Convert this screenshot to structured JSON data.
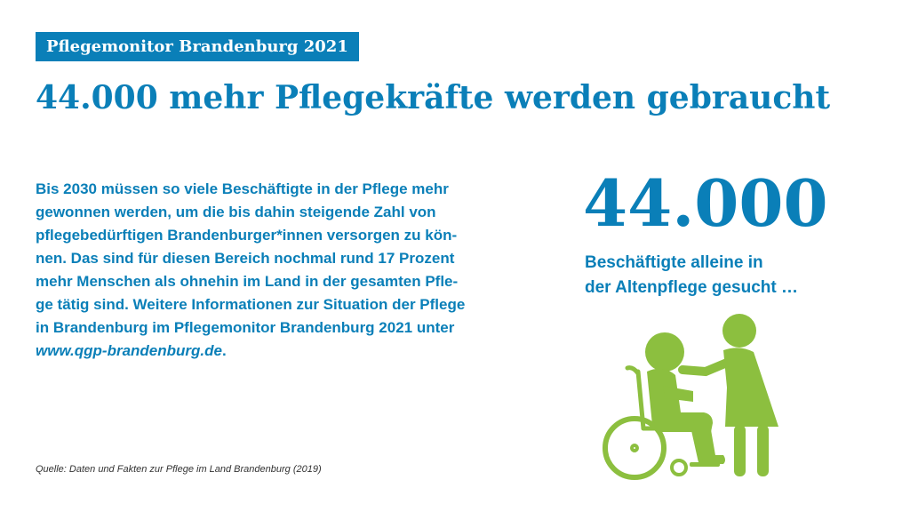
{
  "header": {
    "badge": "Pflegemonitor Brandenburg 2021",
    "title": "44.000 mehr Pflegekräfte werden gebraucht"
  },
  "body": {
    "lines": [
      "Bis 2030 müssen so viele Beschäftigte in der Pflege mehr",
      "gewonnen werden, um die bis dahin steigende Zahl von",
      "pflegebedürftigen Brandenburger*innen versorgen zu kön-",
      "nen. Das sind für diesen Bereich nochmal rund 17 Prozent",
      "mehr Menschen als ohnehin im Land in der gesamten Pfle-",
      "ge tätig sind. Weitere Informationen zur Situation der Pflege",
      "in Brandenburg im Pflegemonitor Brandenburg 2021 unter"
    ],
    "url": "www.qgp-brandenburg.de",
    "url_suffix": "."
  },
  "highlight": {
    "number": "44.000",
    "lines": [
      "Beschäftigte alleine in",
      "der Altenpflege gesucht …"
    ]
  },
  "source": "Quelle: Daten und Fakten zur Pflege im Land Brandenburg (2019)",
  "colors": {
    "accent": "#0a7fb8",
    "illustration": "#8cbf3f",
    "text_muted": "#333333"
  },
  "icons": {
    "illustration": "caregiver-wheelchair-icon"
  }
}
